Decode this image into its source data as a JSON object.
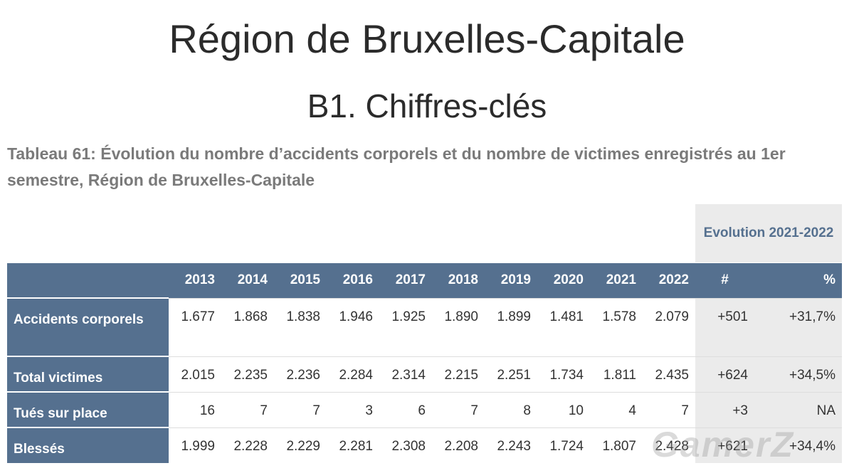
{
  "header": {
    "title": "Région de Bruxelles-Capitale",
    "subtitle": "B1. Chiffres-clés"
  },
  "caption": "Tableau 61: Évolution du nombre d’accidents corporels et du nombre de victimes enregistrés au 1er semestre, Région de Bruxelles-Capitale",
  "table": {
    "group_header": "Evolution 2021-2022",
    "columns": [
      "2013",
      "2014",
      "2015",
      "2016",
      "2017",
      "2018",
      "2019",
      "2020",
      "2021",
      "2022",
      "#",
      "%"
    ],
    "rows": [
      {
        "label": "Accidents corporels",
        "cells": [
          "1.677",
          "1.868",
          "1.838",
          "1.946",
          "1.925",
          "1.890",
          "1.899",
          "1.481",
          "1.578",
          "2.079",
          "+501",
          "+31,7%"
        ]
      },
      {
        "label": "Total victimes",
        "cells": [
          "2.015",
          "2.235",
          "2.236",
          "2.284",
          "2.314",
          "2.215",
          "2.251",
          "1.734",
          "1.811",
          "2.435",
          "+624",
          "+34,5%"
        ]
      },
      {
        "label": "Tués sur place",
        "cells": [
          "16",
          "7",
          "7",
          "3",
          "6",
          "7",
          "8",
          "10",
          "4",
          "7",
          "+3",
          "NA"
        ]
      },
      {
        "label": "Blessés",
        "cells": [
          "1.999",
          "2.228",
          "2.229",
          "2.281",
          "2.308",
          "2.208",
          "2.243",
          "1.724",
          "1.807",
          "2.428",
          "+621",
          "+34,4%"
        ]
      }
    ]
  },
  "watermark": "GamerZ"
}
